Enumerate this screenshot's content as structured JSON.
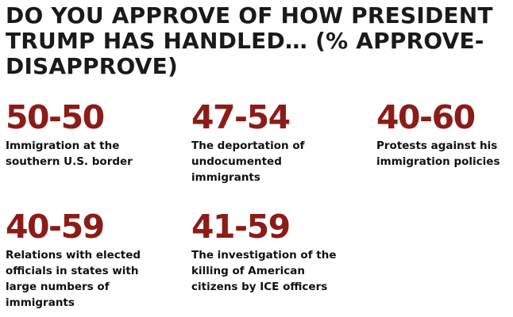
{
  "title": "DO YOU APPROVE OF HOW PRESIDENT TRUMP HAS HANDLED… (% APPROVE-DISAPPROVE)",
  "accent_color": "#8c1c17",
  "stats": [
    {
      "value": "50-50",
      "label": "Immigration at the southern U.S. border"
    },
    {
      "value": "47-54",
      "label": "The deportation of undocumented immigrants"
    },
    {
      "value": "40-60",
      "label": "Protests against his immigration policies"
    },
    {
      "value": "40-59",
      "label": "Relations with elected officials in states with large numbers of immigrants"
    },
    {
      "value": "41-59",
      "label": "The investigation of the killing of American citizens by ICE officers"
    }
  ]
}
